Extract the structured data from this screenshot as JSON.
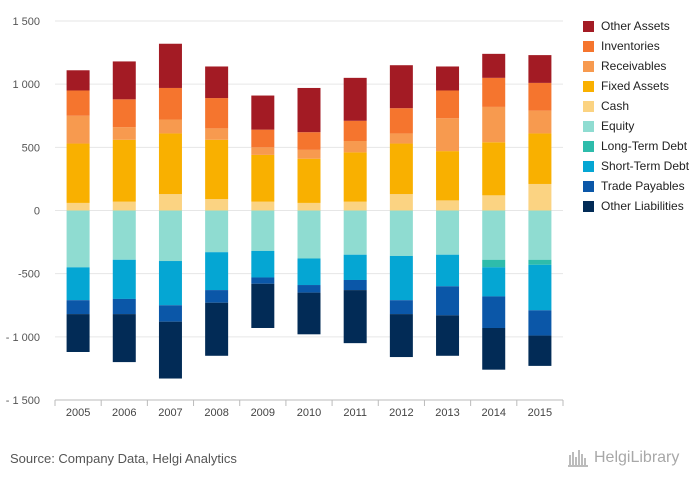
{
  "chart_data": {
    "type": "bar",
    "stacked": true,
    "categories": [
      "2005",
      "2006",
      "2007",
      "2008",
      "2009",
      "2010",
      "2011",
      "2012",
      "2013",
      "2014",
      "2015"
    ],
    "ylim": [
      -1500,
      1500
    ],
    "yticks": [
      -1500,
      -1000,
      -500,
      0,
      500,
      1000,
      1500
    ],
    "ytick_labels": [
      "- 1 500",
      "- 1 000",
      "-500",
      "0",
      "500",
      "1 000",
      "1 500"
    ],
    "grid": true,
    "legend_position": "right",
    "series": [
      {
        "name": "Cash",
        "group": "assets",
        "color": "#fbd382",
        "values": [
          60,
          70,
          130,
          90,
          70,
          60,
          70,
          130,
          80,
          120,
          210
        ]
      },
      {
        "name": "Fixed Assets",
        "group": "assets",
        "color": "#f9b000",
        "values": [
          470,
          490,
          480,
          470,
          370,
          350,
          390,
          400,
          390,
          420,
          400
        ]
      },
      {
        "name": "Receivables",
        "group": "assets",
        "color": "#f79a4f",
        "values": [
          220,
          100,
          110,
          90,
          60,
          70,
          90,
          80,
          260,
          280,
          180
        ]
      },
      {
        "name": "Inventories",
        "group": "assets",
        "color": "#f5752e",
        "values": [
          200,
          220,
          250,
          240,
          140,
          140,
          160,
          200,
          220,
          230,
          220
        ]
      },
      {
        "name": "Other Assets",
        "group": "assets",
        "color": "#a31b24",
        "values": [
          160,
          300,
          350,
          250,
          270,
          350,
          340,
          340,
          190,
          190,
          220
        ]
      },
      {
        "name": "Equity",
        "group": "liabilities",
        "color": "#8fdcd1",
        "values": [
          -450,
          -390,
          -400,
          -330,
          -320,
          -380,
          -350,
          -360,
          -350,
          -390,
          -390
        ]
      },
      {
        "name": "Long-Term Debt",
        "group": "liabilities",
        "color": "#2ebcab",
        "values": [
          0,
          0,
          0,
          0,
          0,
          0,
          0,
          0,
          0,
          -60,
          -40
        ]
      },
      {
        "name": "Short-Term Debt",
        "group": "liabilities",
        "color": "#05a6d3",
        "values": [
          -260,
          -310,
          -350,
          -300,
          -210,
          -210,
          -200,
          -350,
          -250,
          -230,
          -360
        ]
      },
      {
        "name": "Trade Payables",
        "group": "liabilities",
        "color": "#0b57a8",
        "values": [
          -110,
          -120,
          -130,
          -100,
          -50,
          -60,
          -80,
          -110,
          -230,
          -250,
          -200
        ]
      },
      {
        "name": "Other Liabilities",
        "group": "liabilities",
        "color": "#022b56",
        "values": [
          -300,
          -380,
          -450,
          -420,
          -350,
          -330,
          -420,
          -340,
          -320,
          -330,
          -240
        ]
      }
    ]
  },
  "legend": [
    {
      "label": "Other Assets",
      "color": "#a31b24"
    },
    {
      "label": "Inventories",
      "color": "#f5752e"
    },
    {
      "label": "Receivables",
      "color": "#f79a4f"
    },
    {
      "label": "Fixed Assets",
      "color": "#f9b000"
    },
    {
      "label": "Cash",
      "color": "#fbd382"
    },
    {
      "label": "Equity",
      "color": "#8fdcd1"
    },
    {
      "label": "Long-Term Debt",
      "color": "#2ebcab"
    },
    {
      "label": "Short-Term Debt",
      "color": "#05a6d3"
    },
    {
      "label": "Trade Payables",
      "color": "#0b57a8"
    },
    {
      "label": "Other Liabilities",
      "color": "#022b56"
    }
  ],
  "footer": {
    "source": "Source: Company Data, Helgi Analytics",
    "brand": "HelgiLibrary",
    "brand_icon": "helgi-library-logo-icon"
  }
}
